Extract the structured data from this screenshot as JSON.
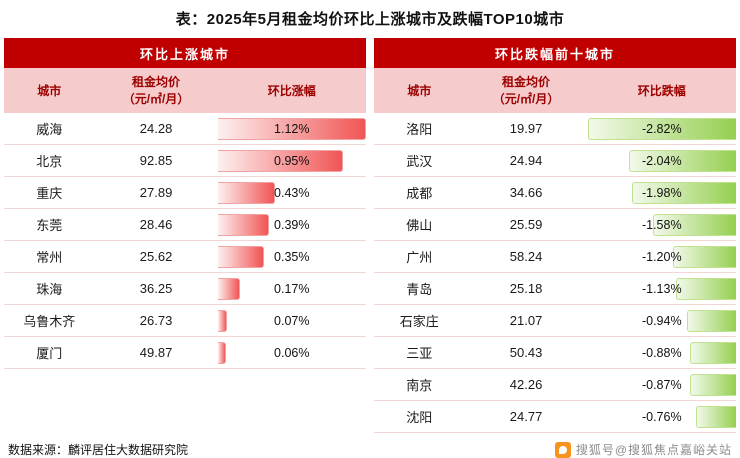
{
  "page": {
    "title": "表：2025年5月租金均价环比上涨城市及跌幅TOP10城市",
    "source": "数据来源：麟评居住大数据研究院",
    "watermark": "搜狐号@搜狐焦点嘉峪关站"
  },
  "colors": {
    "panel_header_red": "#c00000",
    "column_header_pink": "#f6cbcb",
    "column_header_text": "#9c0000",
    "increase_bar_red": "#f15555",
    "decrease_bar_green": "#95cf50",
    "sohu_orange": "#f7941d"
  },
  "left": {
    "header": "环比上涨城市",
    "col_city": "城市",
    "col_price_line1": "租金均价",
    "col_price_line2": "（元/㎡/月）",
    "col_change": "环比涨幅",
    "rows": [
      {
        "city": "威海",
        "price": "24.28",
        "change": "1.12%",
        "bar": 100
      },
      {
        "city": "北京",
        "price": "92.85",
        "change": "0.95%",
        "bar": 84.8
      },
      {
        "city": "重庆",
        "price": "27.89",
        "change": "0.43%",
        "bar": 38.4
      },
      {
        "city": "东莞",
        "price": "28.46",
        "change": "0.39%",
        "bar": 34.8
      },
      {
        "city": "常州",
        "price": "25.62",
        "change": "0.35%",
        "bar": 31.3
      },
      {
        "city": "珠海",
        "price": "36.25",
        "change": "0.17%",
        "bar": 15.2
      },
      {
        "city": "乌鲁木齐",
        "price": "26.73",
        "change": "0.07%",
        "bar": 6.3
      },
      {
        "city": "厦门",
        "price": "49.87",
        "change": "0.06%",
        "bar": 5.4
      }
    ]
  },
  "right": {
    "header": "环比跌幅前十城市",
    "col_city": "城市",
    "col_price_line1": "租金均价",
    "col_price_line2": "（元/㎡/月）",
    "col_change": "环比跌幅",
    "rows": [
      {
        "city": "洛阳",
        "price": "19.97",
        "change": "-2.82%",
        "bar": 100
      },
      {
        "city": "武汉",
        "price": "24.94",
        "change": "-2.04%",
        "bar": 72.3
      },
      {
        "city": "成都",
        "price": "34.66",
        "change": "-1.98%",
        "bar": 70.2
      },
      {
        "city": "佛山",
        "price": "25.59",
        "change": "-1.58%",
        "bar": 56.0
      },
      {
        "city": "广州",
        "price": "58.24",
        "change": "-1.20%",
        "bar": 42.6
      },
      {
        "city": "青岛",
        "price": "25.18",
        "change": "-1.13%",
        "bar": 40.1
      },
      {
        "city": "石家庄",
        "price": "21.07",
        "change": "-0.94%",
        "bar": 33.3
      },
      {
        "city": "三亚",
        "price": "50.43",
        "change": "-0.88%",
        "bar": 31.2
      },
      {
        "city": "南京",
        "price": "42.26",
        "change": "-0.87%",
        "bar": 30.9
      },
      {
        "city": "沈阳",
        "price": "24.77",
        "change": "-0.76%",
        "bar": 27.0
      }
    ]
  },
  "chart_data": [
    {
      "type": "bar",
      "orientation": "horizontal",
      "title": "环比上涨城市",
      "categories": [
        "威海",
        "北京",
        "重庆",
        "东莞",
        "常州",
        "珠海",
        "乌鲁木齐",
        "厦门"
      ],
      "series": [
        {
          "name": "租金均价（元/㎡/月）",
          "values": [
            24.28,
            92.85,
            27.89,
            28.46,
            25.62,
            36.25,
            26.73,
            49.87
          ]
        },
        {
          "name": "环比涨幅(%)",
          "values": [
            1.12,
            0.95,
            0.43,
            0.39,
            0.35,
            0.17,
            0.07,
            0.06
          ]
        }
      ],
      "xlabel": "环比涨幅(%)",
      "xlim": [
        0,
        1.12
      ],
      "grid": false,
      "legend_position": "none"
    },
    {
      "type": "bar",
      "orientation": "horizontal",
      "title": "环比跌幅前十城市",
      "categories": [
        "洛阳",
        "武汉",
        "成都",
        "佛山",
        "广州",
        "青岛",
        "石家庄",
        "三亚",
        "南京",
        "沈阳"
      ],
      "series": [
        {
          "name": "租金均价（元/㎡/月）",
          "values": [
            19.97,
            24.94,
            34.66,
            25.59,
            58.24,
            25.18,
            21.07,
            50.43,
            42.26,
            24.77
          ]
        },
        {
          "name": "环比跌幅(%)",
          "values": [
            -2.82,
            -2.04,
            -1.98,
            -1.58,
            -1.2,
            -1.13,
            -0.94,
            -0.88,
            -0.87,
            -0.76
          ]
        }
      ],
      "xlabel": "环比跌幅(%)",
      "xlim": [
        -2.82,
        0
      ],
      "grid": false,
      "legend_position": "none"
    }
  ]
}
